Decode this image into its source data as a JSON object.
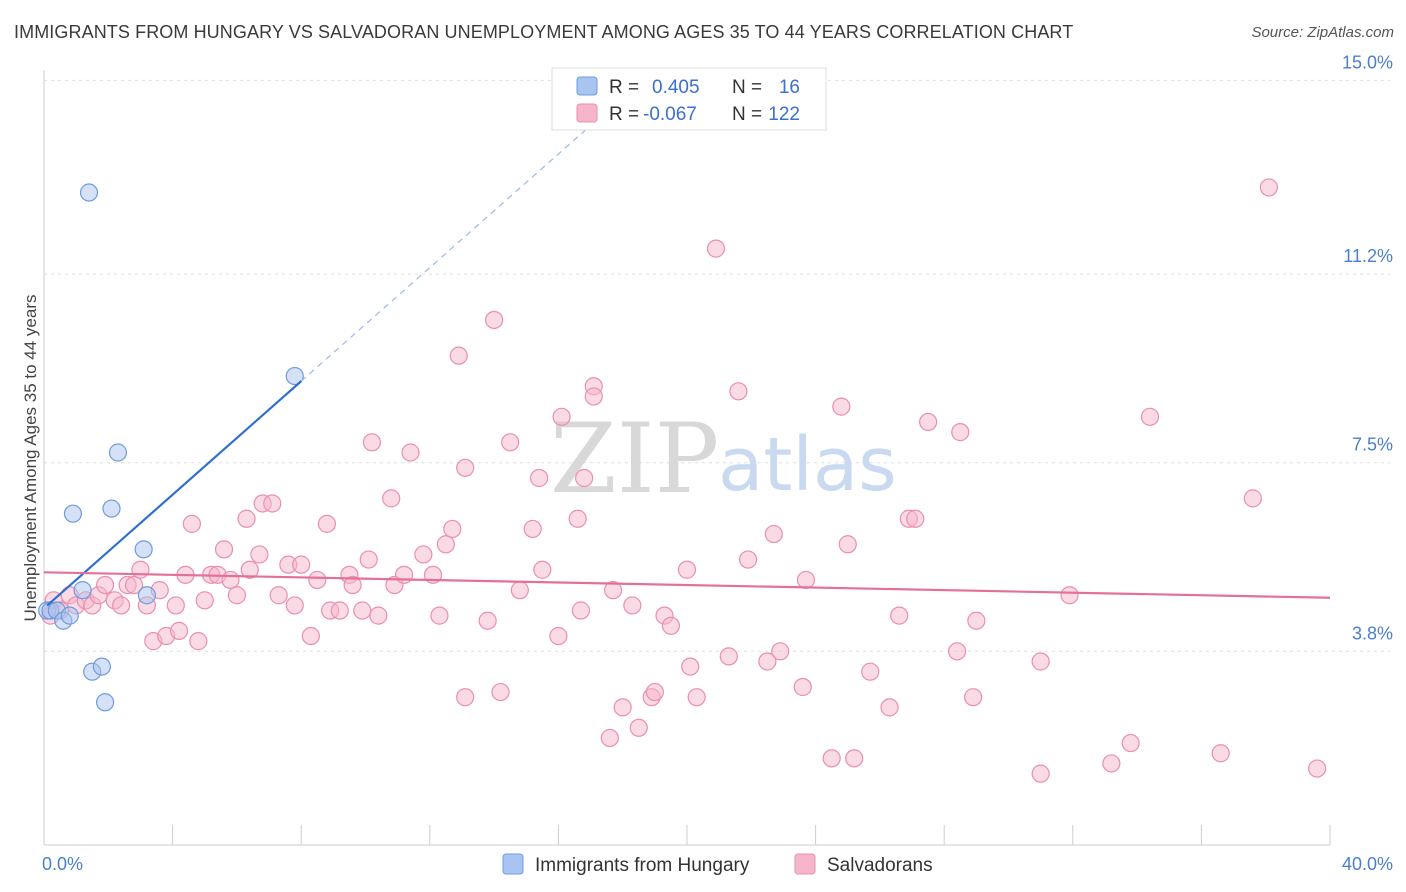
{
  "header": {
    "title": "IMMIGRANTS FROM HUNGARY VS SALVADORAN UNEMPLOYMENT AMONG AGES 35 TO 44 YEARS CORRELATION CHART",
    "source": "Source: ZipAtlas.com"
  },
  "watermark": {
    "part1": "ZIP",
    "part2": "atlas"
  },
  "legend": {
    "r_label": "R =",
    "n_label": "N =",
    "rows": [
      {
        "r": "0.405",
        "n": "16",
        "color": "#a9c4f0"
      },
      {
        "r": "-0.067",
        "n": "122",
        "color": "#f5b6cb"
      }
    ]
  },
  "bottom_legend": [
    {
      "label": "Immigrants from Hungary",
      "color": "#a9c4f0"
    },
    {
      "label": "Salvadorans",
      "color": "#f5b6cb"
    }
  ],
  "chart_data": {
    "type": "scatter",
    "title": "IMMIGRANTS FROM HUNGARY VS SALVADORAN UNEMPLOYMENT AMONG AGES 35 TO 44 YEARS CORRELATION CHART",
    "xlabel": "",
    "ylabel": "Unemployment Among Ages 35 to 44 years",
    "xlim": [
      0,
      40
    ],
    "ylim": [
      0,
      15.4
    ],
    "x_ticks": [
      {
        "value": 0,
        "label": "0.0%"
      },
      {
        "value": 40,
        "label": "40.0%"
      }
    ],
    "y_ticks": [
      {
        "value": 3.8,
        "label": "3.8%"
      },
      {
        "value": 7.5,
        "label": "7.5%"
      },
      {
        "value": 11.2,
        "label": "11.2%"
      },
      {
        "value": 15.0,
        "label": "15.0%"
      }
    ],
    "series": [
      {
        "name": "Immigrants from Hungary",
        "color": "#a9c4f0",
        "stroke": "#6f9be0",
        "trend_color": "#2f6fd0",
        "trend": {
          "x0": 0.1,
          "y0": 4.7,
          "x1": 8,
          "y1": 9.1,
          "dash_to_x": 17.5
        },
        "points": [
          [
            0.1,
            4.6
          ],
          [
            0.2,
            4.6
          ],
          [
            0.4,
            4.6
          ],
          [
            0.6,
            4.4
          ],
          [
            0.8,
            4.5
          ],
          [
            0.9,
            6.5
          ],
          [
            1.2,
            5.0
          ],
          [
            1.4,
            12.8
          ],
          [
            1.5,
            3.4
          ],
          [
            1.8,
            3.5
          ],
          [
            1.9,
            2.8
          ],
          [
            2.1,
            6.6
          ],
          [
            2.3,
            7.7
          ],
          [
            3.1,
            5.8
          ],
          [
            3.2,
            4.9
          ],
          [
            7.8,
            9.2
          ]
        ]
      },
      {
        "name": "Salvadorans",
        "color": "#f5b6cb",
        "stroke": "#ea8fad",
        "trend_color": "#e4709a",
        "trend": {
          "x0": 0,
          "y0": 5.35,
          "x1": 40,
          "y1": 4.85
        },
        "points": [
          [
            0.2,
            4.5
          ],
          [
            0.3,
            4.8
          ],
          [
            0.5,
            4.6
          ],
          [
            0.8,
            4.9
          ],
          [
            1.0,
            4.7
          ],
          [
            1.3,
            4.8
          ],
          [
            1.5,
            4.7
          ],
          [
            1.7,
            4.9
          ],
          [
            1.9,
            5.1
          ],
          [
            2.2,
            4.8
          ],
          [
            2.4,
            4.7
          ],
          [
            2.6,
            5.1
          ],
          [
            2.8,
            5.1
          ],
          [
            3.0,
            5.4
          ],
          [
            3.2,
            4.7
          ],
          [
            3.4,
            4.0
          ],
          [
            3.6,
            5.0
          ],
          [
            3.8,
            4.1
          ],
          [
            4.1,
            4.7
          ],
          [
            4.2,
            4.2
          ],
          [
            4.4,
            5.3
          ],
          [
            4.6,
            6.3
          ],
          [
            4.8,
            4.0
          ],
          [
            5.0,
            4.8
          ],
          [
            5.2,
            5.3
          ],
          [
            5.4,
            5.3
          ],
          [
            5.6,
            5.8
          ],
          [
            5.8,
            5.2
          ],
          [
            6.0,
            4.9
          ],
          [
            6.3,
            6.4
          ],
          [
            6.4,
            5.4
          ],
          [
            6.7,
            5.7
          ],
          [
            6.8,
            6.7
          ],
          [
            7.1,
            6.7
          ],
          [
            7.3,
            4.9
          ],
          [
            7.6,
            5.5
          ],
          [
            7.8,
            4.7
          ],
          [
            8.0,
            5.5
          ],
          [
            8.3,
            4.1
          ],
          [
            8.5,
            5.2
          ],
          [
            8.8,
            6.3
          ],
          [
            8.9,
            4.6
          ],
          [
            9.2,
            4.6
          ],
          [
            9.5,
            5.3
          ],
          [
            9.6,
            5.1
          ],
          [
            9.9,
            4.6
          ],
          [
            10.1,
            5.6
          ],
          [
            10.2,
            7.9
          ],
          [
            10.4,
            4.5
          ],
          [
            10.8,
            6.8
          ],
          [
            10.9,
            5.1
          ],
          [
            11.2,
            5.3
          ],
          [
            11.4,
            7.7
          ],
          [
            11.8,
            5.7
          ],
          [
            12.1,
            5.3
          ],
          [
            12.3,
            4.5
          ],
          [
            12.5,
            5.9
          ],
          [
            12.7,
            6.2
          ],
          [
            12.9,
            9.6
          ],
          [
            13.1,
            7.4
          ],
          [
            13.1,
            2.9
          ],
          [
            13.8,
            4.4
          ],
          [
            14.0,
            10.3
          ],
          [
            14.2,
            3.0
          ],
          [
            14.5,
            7.9
          ],
          [
            14.8,
            5.0
          ],
          [
            15.2,
            6.2
          ],
          [
            15.4,
            7.2
          ],
          [
            15.5,
            5.4
          ],
          [
            16.0,
            4.1
          ],
          [
            16.1,
            8.4
          ],
          [
            16.6,
            6.4
          ],
          [
            16.7,
            4.6
          ],
          [
            16.8,
            7.2
          ],
          [
            17.1,
            9.0
          ],
          [
            17.1,
            8.8
          ],
          [
            17.6,
            2.1
          ],
          [
            17.7,
            5.0
          ],
          [
            18.0,
            2.7
          ],
          [
            18.3,
            4.7
          ],
          [
            18.5,
            2.3
          ],
          [
            18.9,
            2.9
          ],
          [
            19.0,
            3.0
          ],
          [
            19.3,
            4.5
          ],
          [
            19.5,
            4.3
          ],
          [
            20.0,
            5.4
          ],
          [
            20.1,
            3.5
          ],
          [
            20.3,
            2.9
          ],
          [
            20.9,
            11.7
          ],
          [
            21.3,
            3.7
          ],
          [
            21.6,
            8.9
          ],
          [
            21.9,
            5.6
          ],
          [
            22.5,
            3.6
          ],
          [
            22.7,
            6.1
          ],
          [
            22.9,
            3.8
          ],
          [
            23.6,
            3.1
          ],
          [
            23.7,
            5.2
          ],
          [
            24.5,
            1.7
          ],
          [
            24.8,
            8.6
          ],
          [
            25.0,
            5.9
          ],
          [
            25.2,
            1.7
          ],
          [
            25.7,
            3.4
          ],
          [
            26.3,
            2.7
          ],
          [
            26.6,
            4.5
          ],
          [
            26.9,
            6.4
          ],
          [
            27.1,
            6.4
          ],
          [
            27.5,
            8.3
          ],
          [
            28.4,
            3.8
          ],
          [
            28.5,
            8.1
          ],
          [
            28.9,
            2.9
          ],
          [
            29.0,
            4.4
          ],
          [
            31.0,
            3.6
          ],
          [
            31.0,
            1.4
          ],
          [
            31.9,
            4.9
          ],
          [
            33.2,
            1.6
          ],
          [
            33.8,
            2.0
          ],
          [
            34.4,
            8.4
          ],
          [
            36.6,
            1.8
          ],
          [
            37.6,
            6.8
          ],
          [
            38.1,
            12.9
          ],
          [
            39.6,
            1.5
          ]
        ]
      }
    ]
  }
}
